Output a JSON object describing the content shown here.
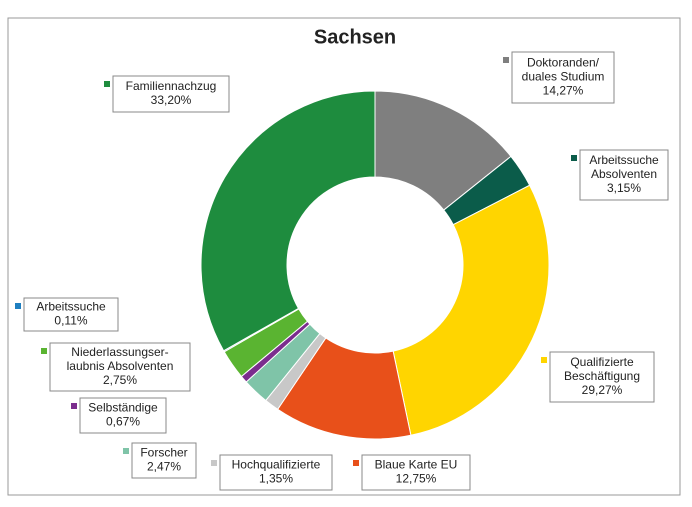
{
  "chart_data": {
    "type": "donut",
    "title": "Sachsen",
    "categories": [
      "Doktoranden/\nduales Studium",
      "Arbeitssuche\nAbsolventen",
      "Qualifizierte\nBeschäftigung",
      "Blaue Karte EU",
      "Hochqualifizierte",
      "Forscher",
      "Selbständige",
      "Niederlassungser-\nlaubnis Absolventen",
      "Arbeitssuche",
      "Familiennachzug"
    ],
    "values": [
      14.27,
      3.15,
      29.27,
      12.75,
      1.35,
      2.47,
      0.67,
      2.75,
      0.11,
      33.2
    ],
    "value_labels": [
      "14,27%",
      "3,15%",
      "29,27%",
      "12,75%",
      "1,35%",
      "2,47%",
      "0,67%",
      "2,75%",
      "0,11%",
      "33,20%"
    ],
    "colors": [
      "#7f7f7f",
      "#0b5c4a",
      "#ffd500",
      "#e8501a",
      "#c8c8c8",
      "#7fc4a8",
      "#7b2d8e",
      "#5ab431",
      "#1f7fc0",
      "#1e8c3e"
    ]
  }
}
